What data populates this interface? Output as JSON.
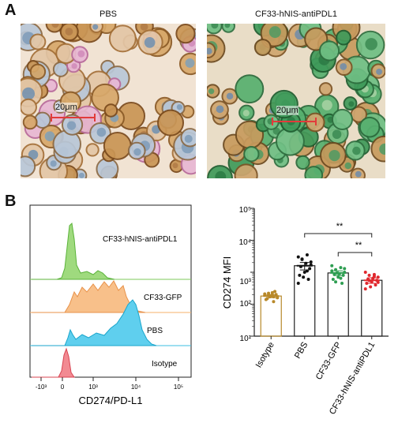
{
  "panel_a": {
    "letter": "A",
    "left_title": "PBS",
    "right_title": "CF33-hNIS-antiPDL1",
    "left_scalebar": "20μm",
    "right_scalebar": "20μm"
  },
  "panel_b": {
    "letter": "B",
    "histogram": {
      "tracks": [
        {
          "label": "CF33-hNIS-antiPDL1",
          "color": "#7cc95a"
        },
        {
          "label": "CF33-GFP",
          "color": "#f6b06a"
        },
        {
          "label": "PBS",
          "color": "#3bbfe0"
        },
        {
          "label": "Isotype",
          "color": "#ee5f6b"
        }
      ],
      "x_ticks": [
        "-10³",
        "0",
        "10³",
        "10⁴",
        "10⁵"
      ],
      "xlabel": "CD274/PD-L1"
    },
    "dotplot": {
      "ylabel": "CD274 MFI",
      "y_ticks": [
        "10¹",
        "10²",
        "10³",
        "10⁴",
        "10⁵"
      ],
      "sig1": "**",
      "sig2": "**"
    }
  },
  "chart_data": {
    "type": "scatter",
    "scale": "log",
    "ylabel": "CD274 MFI",
    "ylim": [
      10,
      100000
    ],
    "categories": [
      "Isotype",
      "PBS",
      "CF33-GFP",
      "CF33-hNIS-antiPDL1"
    ],
    "colors": [
      "#b8892a",
      "#111111",
      "#2e9e52",
      "#e0282e"
    ],
    "means": [
      180,
      1600,
      950,
      560
    ],
    "sems": [
      20,
      420,
      160,
      110
    ],
    "points": [
      [
        210,
        170,
        190,
        160,
        230,
        150,
        200,
        180,
        140,
        250,
        170,
        190,
        120,
        220,
        160,
        200
      ],
      [
        3000,
        3500,
        2500,
        2100,
        1900,
        1500,
        1300,
        1000,
        800,
        600,
        700,
        450,
        1100,
        2600,
        1700
      ],
      [
        1600,
        1400,
        1200,
        1000,
        900,
        850,
        800,
        700,
        600,
        450,
        950,
        1100,
        650,
        500,
        1300
      ],
      [
        1000,
        850,
        800,
        700,
        650,
        600,
        560,
        500,
        450,
        400,
        350,
        300,
        750,
        550,
        480
      ]
    ]
  }
}
